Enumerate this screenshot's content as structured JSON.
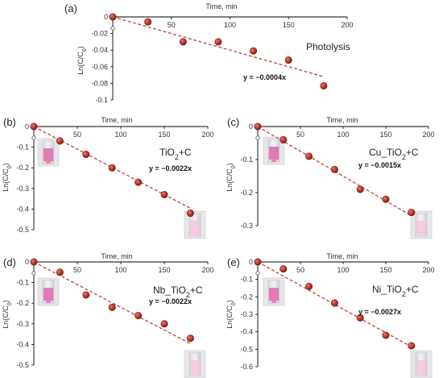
{
  "chart_data": [
    {
      "type": "scatter",
      "panel": "(a)",
      "sample_label": "Photolysis",
      "equation": "y = −0.0004x",
      "xlabel": "Time, min",
      "ylabel": "Ln(C/C",
      "ylabel_sub": "0",
      "ylabel_close": ")",
      "xlim": [
        0,
        200
      ],
      "ylim": [
        -0.1,
        0
      ],
      "xticks": [
        "50",
        "100",
        "150",
        "200"
      ],
      "yticks": [
        "0",
        "-0.02",
        "-0.04",
        "-0.06",
        "-0.08",
        "-0.1"
      ],
      "x": [
        0,
        30,
        60,
        90,
        120,
        150,
        180
      ],
      "y": [
        0,
        -0.006,
        -0.03,
        -0.03,
        -0.041,
        -0.052,
        -0.083
      ],
      "trend_slope": -0.0004,
      "show_cuvettes": false
    },
    {
      "type": "scatter",
      "panel": "(b)",
      "sample_label": "TiO",
      "sample_sub": "2",
      "sample_suffix": "+C",
      "equation": "y = −0.0022x",
      "xlabel": "Time, min",
      "ylabel": "Ln(C/C",
      "ylabel_sub": "0",
      "ylabel_close": ")",
      "xlim": [
        0,
        200
      ],
      "ylim": [
        -0.5,
        0
      ],
      "xticks": [
        "50",
        "100",
        "150",
        "200"
      ],
      "yticks": [
        "0",
        "-0.1",
        "-0.2",
        "-0.3",
        "-0.4",
        "-0.5"
      ],
      "x": [
        0,
        30,
        60,
        90,
        120,
        150,
        180
      ],
      "y": [
        0,
        -0.07,
        -0.135,
        -0.2,
        -0.27,
        -0.33,
        -0.42
      ],
      "trend_slope": -0.0022,
      "show_cuvettes": true
    },
    {
      "type": "scatter",
      "panel": "(c)",
      "sample_label": "Cu_TiO",
      "sample_sub": "2",
      "sample_suffix": "+C",
      "equation": "y = −0.0015x",
      "xlabel": "Time, min",
      "ylabel": "Ln(C/C",
      "ylabel_sub": "0",
      "ylabel_close": ")",
      "xlim": [
        0,
        200
      ],
      "ylim": [
        -0.3,
        0
      ],
      "xticks": [
        "50",
        "100",
        "150",
        "200"
      ],
      "yticks": [
        "0",
        "-0.1",
        "-0.2",
        "-0.3"
      ],
      "x": [
        0,
        30,
        60,
        90,
        120,
        150,
        180
      ],
      "y": [
        0,
        -0.04,
        -0.09,
        -0.13,
        -0.19,
        -0.22,
        -0.26
      ],
      "trend_slope": -0.0015,
      "show_cuvettes": true
    },
    {
      "type": "scatter",
      "panel": "(d)",
      "sample_label": "Nb_TiO",
      "sample_sub": "2",
      "sample_suffix": "+C",
      "equation": "y = −0.0022x",
      "xlabel": "Time, min",
      "ylabel": "Ln(C/C",
      "ylabel_sub": "0",
      "ylabel_close": ")",
      "xlim": [
        0,
        200
      ],
      "ylim": [
        -0.5,
        0
      ],
      "xticks": [
        "50",
        "100",
        "150",
        "200"
      ],
      "yticks": [
        "0",
        "-0.1",
        "-0.2",
        "-0.3",
        "-0.4",
        "-0.5"
      ],
      "x": [
        0,
        30,
        60,
        90,
        120,
        150,
        180
      ],
      "y": [
        0,
        -0.05,
        -0.16,
        -0.22,
        -0.26,
        -0.3,
        -0.37
      ],
      "trend_slope": -0.0022,
      "show_cuvettes": true
    },
    {
      "type": "scatter",
      "panel": "(e)",
      "sample_label": "Ni_TiO",
      "sample_sub": "2",
      "sample_suffix": "+C",
      "equation": "y = −0.0027x",
      "xlabel": "Time, min",
      "ylabel": "Ln(C/C",
      "ylabel_sub": "0",
      "ylabel_close": ")",
      "xlim": [
        0,
        200
      ],
      "ylim": [
        -0.6,
        0
      ],
      "xticks": [
        "50",
        "100",
        "150",
        "200"
      ],
      "yticks": [
        "0",
        "-0.1",
        "-0.2",
        "-0.3",
        "-0.4",
        "-0.5",
        "-0.6"
      ],
      "x": [
        0,
        30,
        60,
        90,
        120,
        150,
        180
      ],
      "y": [
        0,
        -0.04,
        -0.14,
        -0.235,
        -0.32,
        -0.42,
        -0.48
      ],
      "trend_slope": -0.0027,
      "show_cuvettes": true
    }
  ],
  "colors": {
    "marker_fill": "#c0392b",
    "marker_edge": "#6e1a12",
    "trend_line": "#c0504d",
    "axis": "#000000",
    "cuvette_pink_strong": "#e06fb0",
    "cuvette_pink_light": "#f4c6df"
  }
}
